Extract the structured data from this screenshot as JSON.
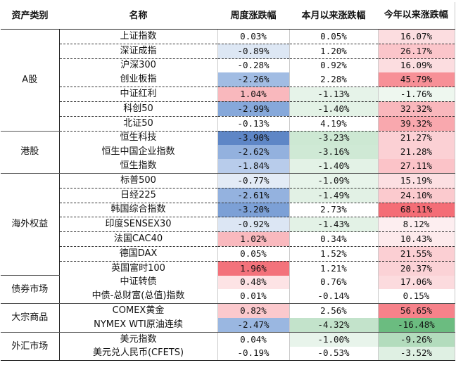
{
  "header": {
    "category": "资产类别",
    "name": "名称",
    "weekly": "周度涨跌幅",
    "monthly": "本月以来涨跌幅",
    "ytd": "今年以来涨跌幅"
  },
  "categories": [
    "A股",
    "港股",
    "海外权益",
    "债券市场",
    "大宗商品",
    "外汇市场"
  ],
  "rows": [
    {
      "name": "上证指数",
      "weekly": "0.03%",
      "monthly": "0.05%",
      "ytd": "16.07%",
      "weekly_bg": "#ffffff",
      "monthly_bg": "#ffffff",
      "ytd_bg": "#fcdde0"
    },
    {
      "name": "深证成指",
      "weekly": "-0.89%",
      "monthly": "1.20%",
      "ytd": "26.17%",
      "weekly_bg": "#dde7f4",
      "monthly_bg": "#ffffff",
      "ytd_bg": "#fbc5ca"
    },
    {
      "name": "沪深300",
      "weekly": "-0.28%",
      "monthly": "0.92%",
      "ytd": "16.09%",
      "weekly_bg": "#ffffff",
      "monthly_bg": "#ffffff",
      "ytd_bg": "#fcdde0"
    },
    {
      "name": "创业板指",
      "weekly": "-2.26%",
      "monthly": "2.28%",
      "ytd": "45.79%",
      "weekly_bg": "#a1bce3",
      "monthly_bg": "#ffffff",
      "ytd_bg": "#f79097"
    },
    {
      "name": "中证红利",
      "weekly": "1.04%",
      "monthly": "-1.13%",
      "ytd": "-1.76%",
      "weekly_bg": "#f9b8bd",
      "monthly_bg": "#e6f3e9",
      "ytd_bg": "#eef7ef"
    },
    {
      "name": "科创50",
      "weekly": "-2.99%",
      "monthly": "-1.40%",
      "ytd": "32.32%",
      "weekly_bg": "#86a8da",
      "monthly_bg": "#e3f2e6",
      "ytd_bg": "#f9b7bc"
    },
    {
      "name": "北证50",
      "weekly": "-0.13%",
      "monthly": "4.19%",
      "ytd": "39.32%",
      "weekly_bg": "#ffffff",
      "monthly_bg": "#ffffff",
      "ytd_bg": "#f9a8ae"
    },
    {
      "name": "恒生科技",
      "weekly": "-3.90%",
      "monthly": "-3.23%",
      "ytd": "21.27%",
      "weekly_bg": "#5e86c6",
      "monthly_bg": "#cde8d3",
      "ytd_bg": "#fbd0d4"
    },
    {
      "name": "恒生中国企业指数",
      "weekly": "-2.62%",
      "monthly": "-3.16%",
      "ytd": "21.28%",
      "weekly_bg": "#93b1de",
      "monthly_bg": "#cfe9d5",
      "ytd_bg": "#fbd0d4"
    },
    {
      "name": "恒生指数",
      "weekly": "-1.84%",
      "monthly": "-1.40%",
      "ytd": "27.11%",
      "weekly_bg": "#b8cceb",
      "monthly_bg": "#e3f2e6",
      "ytd_bg": "#fbc3c8"
    },
    {
      "name": "标普500",
      "weekly": "-0.77%",
      "monthly": "-1.09%",
      "ytd": "15.19%",
      "weekly_bg": "#e3ebf6",
      "monthly_bg": "#e7f4ea",
      "ytd_bg": "#fcdfe2"
    },
    {
      "name": "日经225",
      "weekly": "-2.61%",
      "monthly": "-1.49%",
      "ytd": "24.10%",
      "weekly_bg": "#94b2df",
      "monthly_bg": "#e2f1e5",
      "ytd_bg": "#fbcace"
    },
    {
      "name": "韩国综合指数",
      "weekly": "-3.20%",
      "monthly": "2.73%",
      "ytd": "68.11%",
      "weekly_bg": "#7ca0d6",
      "monthly_bg": "#ffffff",
      "ytd_bg": "#f46d76"
    },
    {
      "name": "印度SENSEX30",
      "weekly": "-0.92%",
      "monthly": "-1.43%",
      "ytd": "8.12%",
      "weekly_bg": "#dce6f4",
      "monthly_bg": "#e3f2e6",
      "ytd_bg": "#fdeef0"
    },
    {
      "name": "法国CAC40",
      "weekly": "1.02%",
      "monthly": "0.34%",
      "ytd": "10.43%",
      "weekly_bg": "#f9b9be",
      "monthly_bg": "#ffffff",
      "ytd_bg": "#fdeaec"
    },
    {
      "name": "德国DAX",
      "weekly": "0.05%",
      "monthly": "1.52%",
      "ytd": "21.55%",
      "weekly_bg": "#ffffff",
      "monthly_bg": "#ffffff",
      "ytd_bg": "#fbcfd3"
    },
    {
      "name": "英国富时100",
      "weekly": "1.96%",
      "monthly": "1.21%",
      "ytd": "20.37%",
      "weekly_bg": "#f3727b",
      "monthly_bg": "#ffffff",
      "ytd_bg": "#fbd2d6"
    },
    {
      "name": "中证转债",
      "weekly": "0.48%",
      "monthly": "0.76%",
      "ytd": "17.06%",
      "weekly_bg": "#fde3e5",
      "monthly_bg": "#ffffff",
      "ytd_bg": "#fcdbde"
    },
    {
      "name": "中债-总财富(总值)指数",
      "weekly": "0.01%",
      "monthly": "-0.14%",
      "ytd": "0.15%",
      "weekly_bg": "#ffffff",
      "monthly_bg": "#ffffff",
      "ytd_bg": "#ffffff"
    },
    {
      "name": "COMEX黄金",
      "weekly": "0.82%",
      "monthly": "2.56%",
      "ytd": "56.65%",
      "weekly_bg": "#fbc9cd",
      "monthly_bg": "#ffffff",
      "ytd_bg": "#f6828a"
    },
    {
      "name": "NYMEX WTI原油连续",
      "weekly": "-2.47%",
      "monthly": "-4.32%",
      "ytd": "-16.48%",
      "weekly_bg": "#9ab7e1",
      "monthly_bg": "#c3e3cb",
      "ytd_bg": "#6bbc80"
    },
    {
      "name": "美元指数",
      "weekly": "0.04%",
      "monthly": "-1.00%",
      "ytd": "-9.26%",
      "weekly_bg": "#ffffff",
      "monthly_bg": "#e8f4eb",
      "ytd_bg": "#b3dcbd"
    },
    {
      "name": "美元兑人民币(CFETS)",
      "weekly": "-0.19%",
      "monthly": "-0.53%",
      "ytd": "-3.52%",
      "weekly_bg": "#ffffff",
      "monthly_bg": "#ffffff",
      "ytd_bg": "#dff0e3"
    }
  ]
}
